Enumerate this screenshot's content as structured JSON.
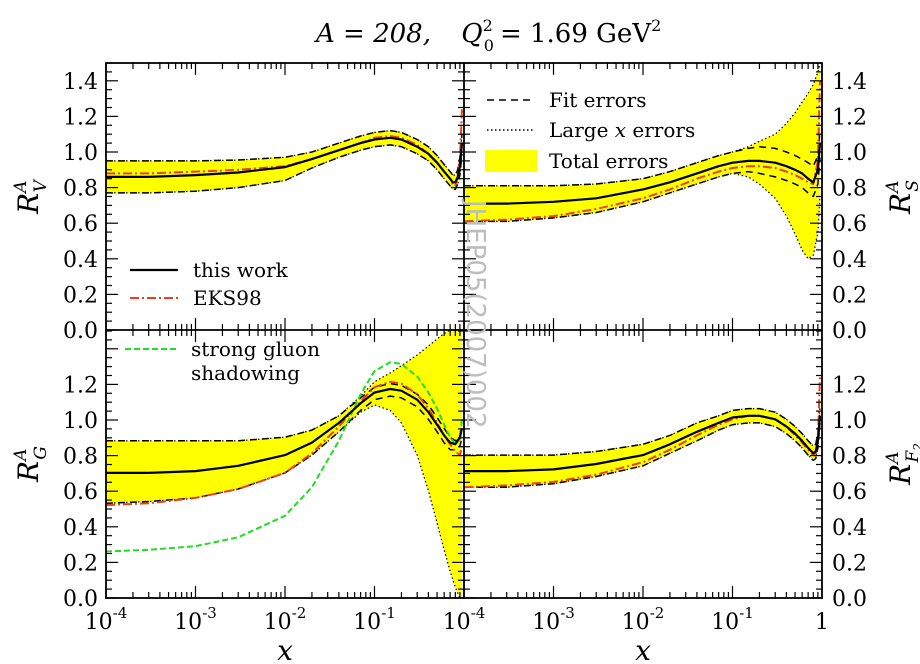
{
  "header": {
    "title_a": "A = 208,",
    "title_q": "Q",
    "title_q_sub": "0",
    "title_q_sup": "2",
    "title_value": "= 1.69 GeV",
    "title_value_sup": "2"
  },
  "watermark": "JHEP05(2007)002",
  "legend_errors": [
    {
      "label": "Fit errors",
      "style": "dashed"
    },
    {
      "label_pre": "Large ",
      "label_var": "x",
      "label_post": " errors",
      "style": "dotted"
    },
    {
      "label": "Total errors",
      "style": "band"
    }
  ],
  "legend_curves": [
    {
      "label": "this work",
      "style": "solid"
    },
    {
      "label": "EKS98",
      "style": "dash-dot"
    }
  ],
  "legend_gluon": [
    "strong gluon",
    "shadowing"
  ],
  "x_axis_title": "x",
  "x_tick_labels": [
    {
      "base": "10",
      "exp": "-4"
    },
    {
      "base": "10",
      "exp": "-3"
    },
    {
      "base": "10",
      "exp": "-2"
    },
    {
      "base": "10",
      "exp": "-1"
    },
    {
      "base": "1",
      "exp": ""
    }
  ],
  "y_tick_labels_top": [
    "0.0",
    "0.2",
    "0.4",
    "0.6",
    "0.8",
    "1.0",
    "1.2",
    "1.4"
  ],
  "y_tick_labels_bottom": [
    "0.0",
    "0.2",
    "0.4",
    "0.6",
    "0.8",
    "1.0",
    "1.2"
  ],
  "colors": {
    "band": "#ffff00",
    "this_work": "#000000",
    "eks98": "#e8401c",
    "gluon_shadow": "#22dd22"
  },
  "chart_data": [
    {
      "type": "line",
      "panel": "top-left",
      "ylabel": "R_V^A",
      "xscale": "log",
      "xlim": [
        0.0001,
        1
      ],
      "ylim": [
        0,
        1.5
      ],
      "x": [
        0.0001,
        0.0003,
        0.001,
        0.003,
        0.01,
        0.02,
        0.04,
        0.07,
        0.1,
        0.15,
        0.2,
        0.3,
        0.4,
        0.5,
        0.6,
        0.7,
        0.75,
        0.8,
        0.85,
        0.9,
        0.95
      ],
      "series": [
        {
          "name": "this work",
          "values": [
            0.86,
            0.86,
            0.87,
            0.885,
            0.915,
            0.96,
            1.01,
            1.05,
            1.07,
            1.08,
            1.07,
            1.03,
            0.99,
            0.94,
            0.89,
            0.85,
            0.83,
            0.83,
            0.86,
            0.92,
            1.05
          ]
        },
        {
          "name": "EKS98",
          "values": [
            0.88,
            0.88,
            0.89,
            0.9,
            0.92,
            0.96,
            1.01,
            1.05,
            1.08,
            1.09,
            1.08,
            1.04,
            0.99,
            0.94,
            0.89,
            0.85,
            0.82,
            0.81,
            0.86,
            0.95,
            1.25
          ]
        },
        {
          "name": "Fit errors upper",
          "values": [
            0.95,
            0.95,
            0.95,
            0.955,
            0.97,
            1.0,
            1.05,
            1.09,
            1.11,
            1.12,
            1.11,
            1.07,
            1.03,
            0.98,
            0.93,
            0.89,
            0.87,
            0.87,
            0.9,
            0.97,
            1.1
          ]
        },
        {
          "name": "Fit errors lower",
          "values": [
            0.77,
            0.77,
            0.78,
            0.8,
            0.84,
            0.91,
            0.97,
            1.01,
            1.03,
            1.04,
            1.03,
            0.99,
            0.95,
            0.9,
            0.85,
            0.81,
            0.79,
            0.79,
            0.82,
            0.87,
            0.99
          ]
        },
        {
          "name": "Total errors upper",
          "values": [
            0.95,
            0.95,
            0.95,
            0.955,
            0.97,
            1.0,
            1.05,
            1.09,
            1.11,
            1.12,
            1.11,
            1.07,
            1.03,
            0.98,
            0.93,
            0.89,
            0.87,
            0.87,
            0.9,
            0.97,
            1.1
          ]
        },
        {
          "name": "Total errors lower",
          "values": [
            0.77,
            0.77,
            0.78,
            0.8,
            0.84,
            0.91,
            0.97,
            1.01,
            1.03,
            1.04,
            1.03,
            0.99,
            0.95,
            0.9,
            0.85,
            0.81,
            0.79,
            0.79,
            0.82,
            0.87,
            0.99
          ]
        }
      ]
    },
    {
      "type": "line",
      "panel": "top-right",
      "ylabel": "R_S^A",
      "xscale": "log",
      "xlim": [
        0.0001,
        1
      ],
      "ylim": [
        0,
        1.5
      ],
      "x": [
        0.0001,
        0.0003,
        0.001,
        0.003,
        0.01,
        0.02,
        0.04,
        0.07,
        0.1,
        0.15,
        0.2,
        0.3,
        0.4,
        0.5,
        0.6,
        0.7,
        0.8,
        0.9,
        0.95
      ],
      "series": [
        {
          "name": "this work",
          "values": [
            0.71,
            0.71,
            0.72,
            0.74,
            0.79,
            0.83,
            0.88,
            0.92,
            0.94,
            0.95,
            0.95,
            0.94,
            0.92,
            0.9,
            0.88,
            0.85,
            0.83,
            0.9,
            1.05
          ]
        },
        {
          "name": "EKS98",
          "values": [
            0.61,
            0.62,
            0.64,
            0.68,
            0.74,
            0.79,
            0.85,
            0.89,
            0.91,
            0.92,
            0.92,
            0.91,
            0.89,
            0.87,
            0.85,
            0.83,
            0.82,
            0.95,
            1.4
          ]
        },
        {
          "name": "Fit errors upper",
          "values": [
            0.81,
            0.81,
            0.81,
            0.82,
            0.85,
            0.89,
            0.94,
            0.98,
            1.0,
            1.02,
            1.03,
            1.02,
            1.0,
            0.98,
            0.96,
            0.94,
            0.92,
            0.98,
            1.12
          ]
        },
        {
          "name": "Fit errors lower",
          "values": [
            0.61,
            0.61,
            0.63,
            0.66,
            0.72,
            0.77,
            0.82,
            0.86,
            0.88,
            0.89,
            0.88,
            0.86,
            0.84,
            0.82,
            0.8,
            0.77,
            0.75,
            0.82,
            0.97
          ]
        },
        {
          "name": "Total errors upper",
          "values": [
            0.81,
            0.81,
            0.81,
            0.82,
            0.85,
            0.89,
            0.94,
            0.98,
            1.0,
            1.03,
            1.06,
            1.1,
            1.16,
            1.22,
            1.28,
            1.33,
            1.38,
            1.45,
            1.5
          ]
        },
        {
          "name": "Total errors lower",
          "values": [
            0.61,
            0.61,
            0.63,
            0.66,
            0.72,
            0.77,
            0.82,
            0.86,
            0.88,
            0.86,
            0.82,
            0.74,
            0.64,
            0.54,
            0.45,
            0.4,
            0.42,
            0.55,
            0.75
          ]
        }
      ]
    },
    {
      "type": "line",
      "panel": "bottom-left",
      "ylabel": "R_G^A",
      "xscale": "log",
      "xlim": [
        0.0001,
        1
      ],
      "ylim": [
        0,
        1.5
      ],
      "x": [
        0.0001,
        0.0003,
        0.001,
        0.003,
        0.01,
        0.02,
        0.04,
        0.07,
        0.1,
        0.15,
        0.2,
        0.3,
        0.4,
        0.5,
        0.6,
        0.7,
        0.8,
        0.9,
        0.95
      ],
      "series": [
        {
          "name": "this work",
          "values": [
            0.7,
            0.7,
            0.71,
            0.74,
            0.8,
            0.87,
            0.98,
            1.09,
            1.15,
            1.17,
            1.16,
            1.11,
            1.04,
            0.97,
            0.91,
            0.87,
            0.86,
            0.9,
            0.95
          ]
        },
        {
          "name": "EKS98",
          "values": [
            0.52,
            0.53,
            0.56,
            0.61,
            0.7,
            0.81,
            0.96,
            1.1,
            1.18,
            1.21,
            1.2,
            1.14,
            1.06,
            0.98,
            0.91,
            0.86,
            0.82,
            0.8,
            0.85
          ]
        },
        {
          "name": "strong gluon shadowing",
          "values": [
            0.26,
            0.27,
            0.29,
            0.34,
            0.46,
            0.62,
            0.88,
            1.14,
            1.27,
            1.32,
            1.31,
            1.24,
            1.15,
            1.06,
            0.97,
            0.9,
            0.86,
            0.89,
            1.0
          ]
        },
        {
          "name": "Fit errors upper",
          "values": [
            0.88,
            0.88,
            0.88,
            0.88,
            0.9,
            0.94,
            1.02,
            1.12,
            1.18,
            1.2,
            1.19,
            1.14,
            1.08,
            1.01,
            0.95,
            0.9,
            0.88,
            0.9,
            1.0
          ]
        },
        {
          "name": "Fit errors lower",
          "values": [
            0.53,
            0.54,
            0.56,
            0.61,
            0.7,
            0.8,
            0.93,
            1.05,
            1.11,
            1.13,
            1.12,
            1.07,
            1.0,
            0.93,
            0.87,
            0.83,
            0.83,
            0.85,
            0.9
          ]
        },
        {
          "name": "Total errors upper",
          "values": [
            0.88,
            0.88,
            0.88,
            0.88,
            0.9,
            0.94,
            1.02,
            1.13,
            1.21,
            1.26,
            1.3,
            1.36,
            1.41,
            1.45,
            1.48,
            1.5,
            1.5,
            1.5,
            1.5
          ]
        },
        {
          "name": "Total errors lower",
          "values": [
            0.53,
            0.54,
            0.56,
            0.61,
            0.7,
            0.8,
            0.93,
            1.04,
            1.08,
            1.05,
            0.98,
            0.8,
            0.6,
            0.42,
            0.27,
            0.15,
            0.06,
            0.0,
            0.0
          ]
        }
      ]
    },
    {
      "type": "line",
      "panel": "bottom-right",
      "ylabel": "R_F2^A",
      "xscale": "log",
      "xlim": [
        0.0001,
        1
      ],
      "ylim": [
        0,
        1.5
      ],
      "x": [
        0.0001,
        0.0003,
        0.001,
        0.003,
        0.01,
        0.02,
        0.04,
        0.07,
        0.1,
        0.15,
        0.2,
        0.3,
        0.4,
        0.5,
        0.6,
        0.7,
        0.8,
        0.85,
        0.9,
        0.95
      ],
      "series": [
        {
          "name": "this work",
          "values": [
            0.71,
            0.71,
            0.72,
            0.75,
            0.8,
            0.86,
            0.93,
            0.98,
            1.01,
            1.02,
            1.02,
            1.0,
            0.96,
            0.92,
            0.88,
            0.84,
            0.81,
            0.82,
            0.88,
            1.02
          ]
        },
        {
          "name": "EKS98",
          "values": [
            0.62,
            0.63,
            0.65,
            0.69,
            0.76,
            0.83,
            0.91,
            0.97,
            1.0,
            1.02,
            1.02,
            1.0,
            0.96,
            0.91,
            0.87,
            0.83,
            0.8,
            0.81,
            0.88,
            1.25
          ]
        },
        {
          "name": "Fit errors upper",
          "values": [
            0.8,
            0.8,
            0.8,
            0.82,
            0.86,
            0.91,
            0.98,
            1.02,
            1.05,
            1.06,
            1.06,
            1.04,
            1.0,
            0.96,
            0.92,
            0.88,
            0.85,
            0.86,
            0.92,
            1.06
          ]
        },
        {
          "name": "Fit errors lower",
          "values": [
            0.62,
            0.62,
            0.64,
            0.68,
            0.74,
            0.81,
            0.88,
            0.94,
            0.97,
            0.98,
            0.98,
            0.96,
            0.92,
            0.88,
            0.84,
            0.8,
            0.77,
            0.78,
            0.84,
            0.98
          ]
        },
        {
          "name": "Total errors upper",
          "values": [
            0.8,
            0.8,
            0.8,
            0.82,
            0.86,
            0.91,
            0.98,
            1.02,
            1.05,
            1.06,
            1.06,
            1.04,
            1.0,
            0.96,
            0.92,
            0.88,
            0.85,
            0.86,
            0.92,
            1.06
          ]
        },
        {
          "name": "Total errors lower",
          "values": [
            0.62,
            0.62,
            0.64,
            0.68,
            0.74,
            0.81,
            0.88,
            0.94,
            0.97,
            0.98,
            0.98,
            0.96,
            0.92,
            0.88,
            0.84,
            0.8,
            0.77,
            0.78,
            0.84,
            0.98
          ]
        }
      ]
    }
  ]
}
